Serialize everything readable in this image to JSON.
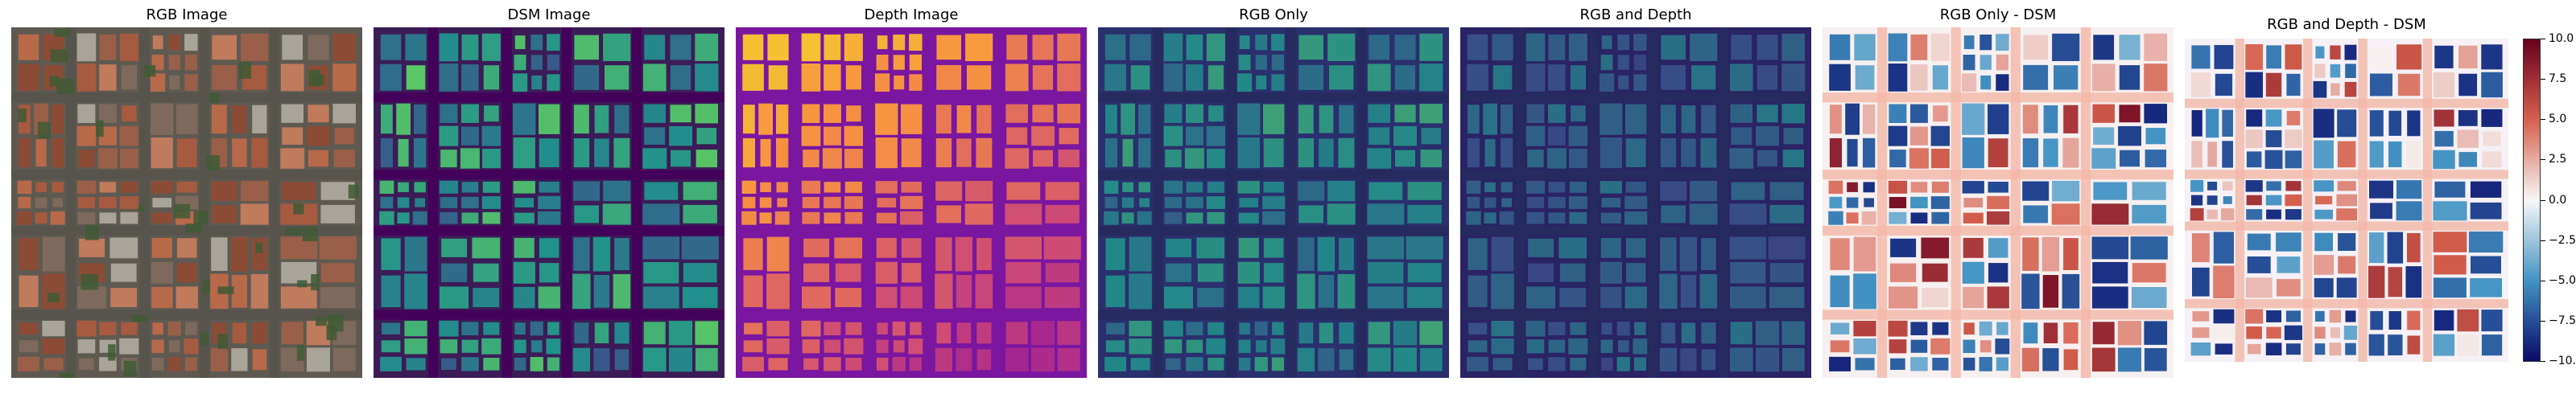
{
  "panels": [
    {
      "id": "rgb",
      "title": "RGB Image",
      "kind": "rgb"
    },
    {
      "id": "dsm",
      "title": "DSM Image",
      "kind": "dsm"
    },
    {
      "id": "depth",
      "title": "Depth Image",
      "kind": "depth"
    },
    {
      "id": "rgb-only",
      "title": "RGB Only",
      "kind": "pred-rgb"
    },
    {
      "id": "rgb-depth",
      "title": "RGB and Depth",
      "kind": "pred-rgbd"
    },
    {
      "id": "rgb-only-dsm",
      "title": "RGB Only - DSM",
      "kind": "diff-a"
    },
    {
      "id": "rgb-depth-dsm",
      "title": "RGB and Depth - DSM",
      "kind": "diff-b"
    }
  ],
  "colorbar": {
    "ticks": [
      "10.0",
      "7.5",
      "5.0",
      "2.5",
      "0.0",
      "−2.5",
      "−5.0",
      "−7.5",
      "−10.0"
    ],
    "tick_values": [
      10,
      7.5,
      5,
      2.5,
      0,
      -2.5,
      -5,
      -7.5,
      -10
    ],
    "range": [
      -10,
      10
    ],
    "colors": [
      "#67001f",
      "#d6604d",
      "#f7f7f7",
      "#4393c3",
      "#0a0a6a"
    ]
  }
}
